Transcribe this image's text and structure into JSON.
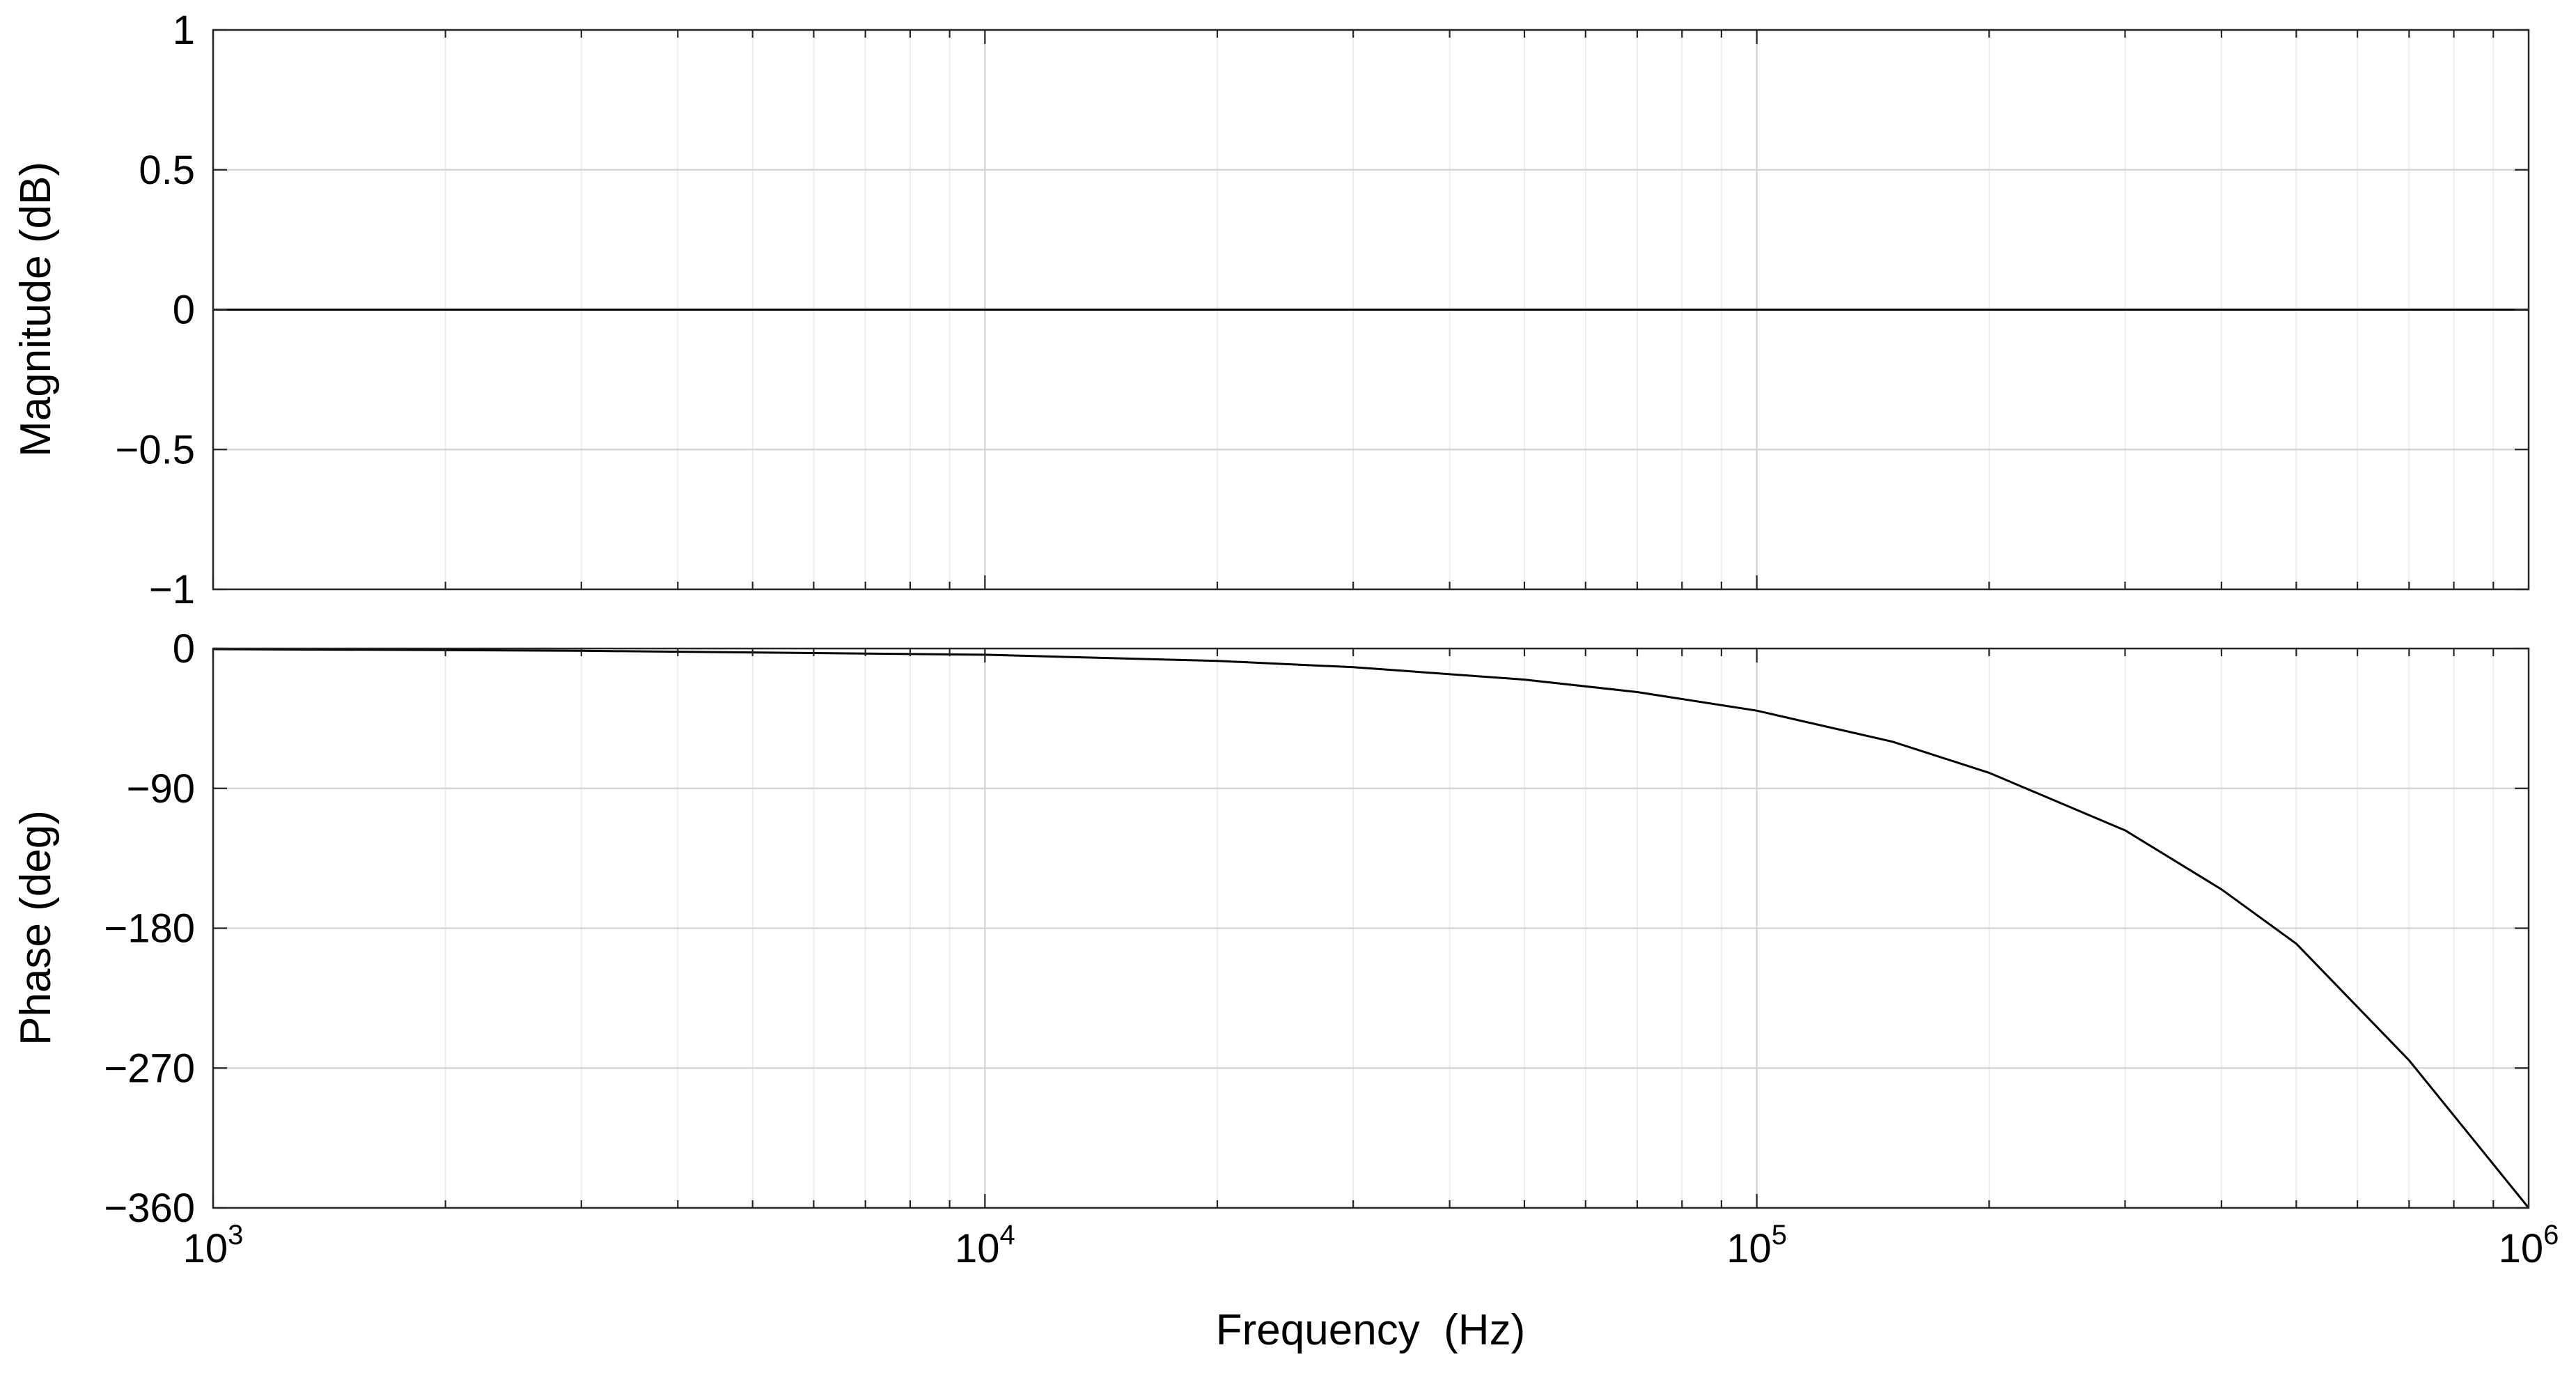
{
  "chart_data": [
    {
      "type": "line",
      "panel": "magnitude",
      "title": "",
      "xlabel": "",
      "ylabel": "Magnitude (dB)",
      "xscale": "log",
      "xlim": [
        1000,
        1000000
      ],
      "ylim": [
        -1,
        1
      ],
      "yticks": [
        "1",
        "0.5",
        "0",
        "−0.5",
        "−1"
      ],
      "ytick_values": [
        1,
        0.5,
        0,
        -0.5,
        -1
      ],
      "grid": true,
      "series": [
        {
          "color": "#000000",
          "x": [
            1000,
            1000000
          ],
          "y": [
            0,
            0
          ]
        }
      ]
    },
    {
      "type": "line",
      "panel": "phase",
      "title": "",
      "xlabel": "Frequency  (Hz)",
      "ylabel": "Phase (deg)",
      "xscale": "log",
      "xlim": [
        1000,
        1000000
      ],
      "ylim": [
        -360,
        0
      ],
      "yticks": [
        "0",
        "−90",
        "−180",
        "−270",
        "−360"
      ],
      "ytick_values": [
        0,
        -90,
        -180,
        -270,
        -360
      ],
      "xticks": [
        {
          "base": "10",
          "exp": "3",
          "value": 1000
        },
        {
          "base": "10",
          "exp": "4",
          "value": 10000
        },
        {
          "base": "10",
          "exp": "5",
          "value": 100000
        },
        {
          "base": "10",
          "exp": "6",
          "value": 1000000
        }
      ],
      "grid": true,
      "series": [
        {
          "color": "#000000",
          "x": [
            1000,
            2000,
            3000,
            5000,
            10000,
            20000,
            30000,
            50000,
            70000,
            100000,
            150000,
            200000,
            300000,
            400000,
            500000,
            700000,
            1000000
          ],
          "y": [
            -0.4,
            -1,
            -1.5,
            -2.5,
            -4,
            -8,
            -12,
            -20,
            -28,
            -40,
            -60,
            -80,
            -117,
            -155,
            -190,
            -265,
            -360
          ]
        }
      ]
    }
  ]
}
